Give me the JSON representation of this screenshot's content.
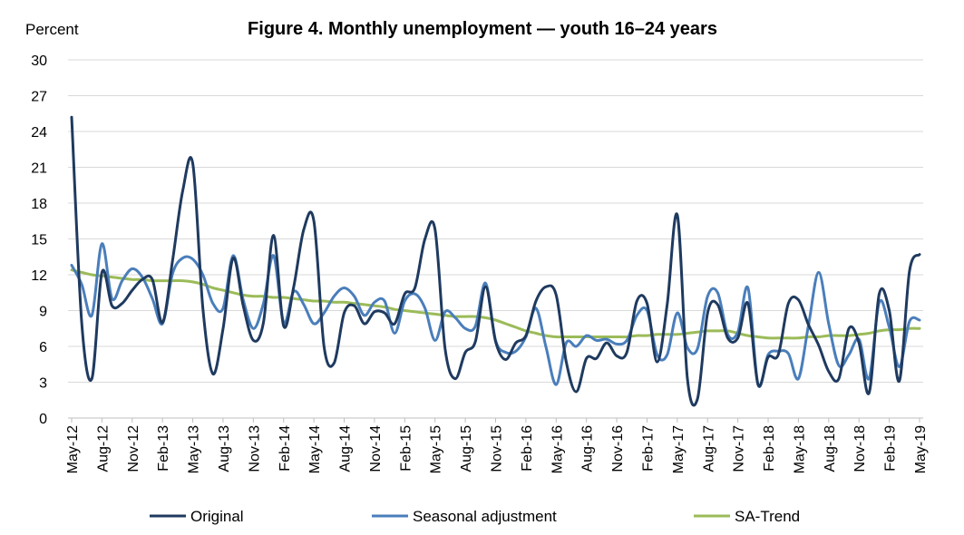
{
  "chart_data": {
    "type": "line",
    "title": "Figure 4. Monthly unemployment  — youth 16–24 years",
    "ylabel": "Percent",
    "xlabel": "",
    "ylim": [
      0,
      30
    ],
    "yticks": [
      0,
      3,
      6,
      9,
      12,
      15,
      18,
      21,
      24,
      27,
      30
    ],
    "grid": true,
    "legend_position": "bottom",
    "x": [
      "2012-05",
      "2012-06",
      "2012-07",
      "2012-08",
      "2012-09",
      "2012-10",
      "2012-11",
      "2012-12",
      "2013-01",
      "2013-02",
      "2013-03",
      "2013-04",
      "2013-05",
      "2013-06",
      "2013-07",
      "2013-08",
      "2013-09",
      "2013-10",
      "2013-11",
      "2013-12",
      "2014-01",
      "2014-02",
      "2014-03",
      "2014-04",
      "2014-05",
      "2014-06",
      "2014-07",
      "2014-08",
      "2014-09",
      "2014-10",
      "2014-11",
      "2014-12",
      "2015-01",
      "2015-02",
      "2015-03",
      "2015-04",
      "2015-05",
      "2015-06",
      "2015-07",
      "2015-08",
      "2015-09",
      "2015-10",
      "2015-11",
      "2015-12",
      "2016-01",
      "2016-02",
      "2016-03",
      "2016-04",
      "2016-05",
      "2016-06",
      "2016-07",
      "2016-08",
      "2016-09",
      "2016-10",
      "2016-11",
      "2016-12",
      "2017-01",
      "2017-02",
      "2017-03",
      "2017-04",
      "2017-05",
      "2017-06",
      "2017-07",
      "2017-08",
      "2017-09",
      "2017-10",
      "2017-11",
      "2017-12",
      "2018-01",
      "2018-02",
      "2018-03",
      "2018-04",
      "2018-05",
      "2018-06",
      "2018-07",
      "2018-08",
      "2018-09",
      "2018-10",
      "2018-11",
      "2018-12",
      "2019-01",
      "2019-02",
      "2019-03",
      "2019-04",
      "2019-05"
    ],
    "tick_labels": [
      "May-12",
      "Aug-12",
      "Nov-12",
      "Feb-13",
      "May-13",
      "Aug-13",
      "Nov-13",
      "Feb-14",
      "May-14",
      "Aug-14",
      "Nov-14",
      "Feb-15",
      "May-15",
      "Aug-15",
      "Nov-15",
      "Feb-16",
      "May-16",
      "Aug-16",
      "Nov-16",
      "Feb-17",
      "May-17",
      "Aug-17",
      "Nov-17",
      "Feb-18",
      "May-18",
      "Aug-18",
      "Nov-18",
      "Feb-19",
      "May-19"
    ],
    "series": [
      {
        "name": "Original",
        "color": "#1f3a5f",
        "values": [
          25.2,
          8.0,
          3.3,
          12.2,
          9.4,
          9.6,
          10.7,
          11.6,
          11.6,
          8.0,
          13.2,
          19.0,
          21.3,
          9.2,
          3.7,
          7.5,
          13.4,
          9.4,
          6.5,
          8.0,
          15.3,
          7.7,
          11.0,
          15.8,
          16.5,
          6.0,
          4.6,
          8.8,
          9.4,
          7.9,
          8.9,
          8.8,
          7.9,
          10.4,
          10.9,
          15.0,
          15.8,
          5.8,
          3.3,
          5.5,
          6.4,
          11.0,
          6.4,
          4.9,
          6.3,
          6.9,
          9.8,
          11.0,
          10.3,
          4.7,
          2.2,
          5.0,
          5.0,
          6.3,
          5.2,
          5.5,
          9.8,
          9.6,
          4.7,
          9.5,
          17.0,
          3.3,
          1.6,
          8.8,
          9.5,
          6.7,
          6.7,
          9.6,
          2.8,
          5.1,
          5.3,
          9.6,
          9.9,
          7.8,
          6.1,
          3.9,
          3.3,
          7.5,
          6.3,
          2.1,
          10.4,
          9.0,
          3.1,
          12.3,
          13.7
        ]
      },
      {
        "name": "Seasonal adjustment",
        "color": "#4a7ebb",
        "values": [
          12.8,
          11.2,
          8.6,
          14.6,
          10.0,
          11.5,
          12.5,
          11.8,
          10.0,
          7.9,
          12.1,
          13.4,
          13.3,
          12.0,
          9.6,
          9.2,
          13.6,
          9.9,
          7.5,
          9.6,
          13.6,
          8.0,
          10.6,
          9.5,
          7.9,
          8.8,
          10.2,
          10.9,
          10.2,
          8.6,
          9.7,
          9.8,
          7.1,
          9.8,
          10.4,
          9.2,
          6.5,
          8.9,
          8.4,
          7.5,
          7.7,
          11.3,
          6.5,
          5.5,
          5.6,
          6.8,
          9.2,
          5.9,
          2.8,
          6.3,
          6.0,
          6.9,
          6.5,
          6.6,
          6.2,
          6.5,
          8.6,
          9.0,
          5.3,
          5.3,
          8.8,
          5.9,
          5.8,
          10.2,
          10.5,
          7.0,
          7.2,
          10.9,
          2.8,
          5.3,
          5.6,
          5.4,
          3.3,
          7.8,
          12.2,
          7.9,
          4.4,
          5.3,
          6.6,
          3.3,
          9.7,
          7.6,
          4.3,
          8.1,
          8.2
        ]
      },
      {
        "name": "SA-Trend",
        "color": "#9bbb59",
        "values": [
          12.4,
          12.2,
          12.0,
          11.9,
          11.8,
          11.7,
          11.6,
          11.6,
          11.5,
          11.5,
          11.5,
          11.5,
          11.4,
          11.2,
          10.9,
          10.7,
          10.5,
          10.3,
          10.2,
          10.2,
          10.1,
          10.1,
          10.0,
          9.9,
          9.8,
          9.8,
          9.7,
          9.7,
          9.6,
          9.5,
          9.4,
          9.3,
          9.1,
          9.0,
          8.9,
          8.8,
          8.7,
          8.6,
          8.5,
          8.5,
          8.5,
          8.4,
          8.2,
          7.9,
          7.6,
          7.3,
          7.1,
          6.9,
          6.8,
          6.8,
          6.8,
          6.8,
          6.8,
          6.8,
          6.8,
          6.8,
          6.9,
          6.9,
          7.0,
          7.0,
          7.0,
          7.1,
          7.2,
          7.3,
          7.3,
          7.3,
          7.1,
          6.9,
          6.8,
          6.7,
          6.7,
          6.7,
          6.7,
          6.8,
          6.8,
          6.9,
          6.9,
          6.9,
          7.0,
          7.1,
          7.3,
          7.4,
          7.4,
          7.5,
          7.5
        ]
      }
    ]
  }
}
